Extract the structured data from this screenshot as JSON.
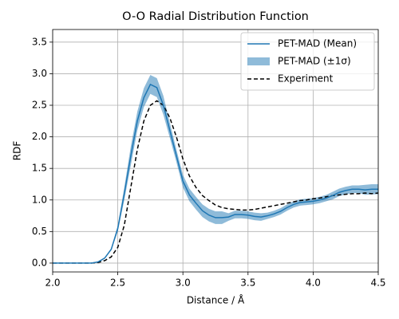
{
  "chart_data": {
    "type": "line",
    "title": "O-O Radial Distribution Function",
    "xlabel": "Distance / Å",
    "ylabel": "RDF",
    "x": [
      2.0,
      2.05,
      2.1,
      2.15,
      2.2,
      2.25,
      2.3,
      2.35,
      2.4,
      2.45,
      2.5,
      2.55,
      2.6,
      2.65,
      2.7,
      2.75,
      2.8,
      2.85,
      2.9,
      2.95,
      3.0,
      3.05,
      3.1,
      3.15,
      3.2,
      3.25,
      3.3,
      3.35,
      3.4,
      3.45,
      3.5,
      3.55,
      3.6,
      3.65,
      3.7,
      3.75,
      3.8,
      3.85,
      3.9,
      3.95,
      4.0,
      4.05,
      4.1,
      4.15,
      4.2,
      4.25,
      4.3,
      4.35,
      4.4,
      4.45,
      4.5
    ],
    "series": [
      {
        "name": "PET-MAD (Mean)",
        "color": "#1f77b4",
        "style": "solid",
        "values": [
          0,
          0,
          0,
          0,
          0,
          0,
          0,
          0.02,
          0.08,
          0.22,
          0.55,
          1.1,
          1.7,
          2.25,
          2.62,
          2.83,
          2.78,
          2.5,
          2.1,
          1.7,
          1.3,
          1.08,
          0.95,
          0.83,
          0.76,
          0.72,
          0.72,
          0.73,
          0.77,
          0.77,
          0.76,
          0.74,
          0.73,
          0.75,
          0.78,
          0.82,
          0.88,
          0.93,
          0.96,
          0.97,
          0.98,
          1.0,
          1.03,
          1.07,
          1.12,
          1.15,
          1.17,
          1.17,
          1.16,
          1.17,
          1.17
        ]
      },
      {
        "name": "PET-MAD (±1σ)",
        "color": "#1f77b4",
        "alpha": 0.5,
        "style": "band",
        "lower": [
          0,
          0,
          0,
          0,
          0,
          0,
          0,
          0.01,
          0.07,
          0.21,
          0.5,
          1.0,
          1.55,
          2.1,
          2.47,
          2.68,
          2.63,
          2.35,
          1.98,
          1.6,
          1.2,
          0.98,
          0.85,
          0.73,
          0.66,
          0.62,
          0.62,
          0.67,
          0.71,
          0.71,
          0.7,
          0.68,
          0.67,
          0.7,
          0.73,
          0.77,
          0.83,
          0.88,
          0.91,
          0.92,
          0.93,
          0.95,
          0.98,
          1.01,
          1.06,
          1.09,
          1.11,
          1.11,
          1.08,
          1.09,
          1.09
        ],
        "upper": [
          0,
          0,
          0,
          0,
          0,
          0,
          0,
          0.03,
          0.09,
          0.23,
          0.6,
          1.2,
          1.85,
          2.4,
          2.77,
          2.98,
          2.93,
          2.65,
          2.22,
          1.8,
          1.4,
          1.18,
          1.05,
          0.93,
          0.86,
          0.82,
          0.82,
          0.79,
          0.83,
          0.83,
          0.82,
          0.8,
          0.79,
          0.8,
          0.83,
          0.87,
          0.93,
          0.98,
          1.01,
          1.02,
          1.03,
          1.05,
          1.08,
          1.13,
          1.18,
          1.21,
          1.23,
          1.23,
          1.24,
          1.25,
          1.25
        ]
      },
      {
        "name": "Experiment",
        "color": "#000000",
        "style": "dashed",
        "values": [
          0,
          0,
          0,
          0,
          0,
          0,
          0,
          0.01,
          0.04,
          0.1,
          0.25,
          0.6,
          1.2,
          1.8,
          2.25,
          2.5,
          2.57,
          2.5,
          2.3,
          2.0,
          1.65,
          1.38,
          1.2,
          1.07,
          0.99,
          0.92,
          0.88,
          0.86,
          0.85,
          0.84,
          0.84,
          0.85,
          0.87,
          0.89,
          0.91,
          0.93,
          0.95,
          0.97,
          0.99,
          1.0,
          1.02,
          1.03,
          1.05,
          1.07,
          1.08,
          1.09,
          1.1,
          1.1,
          1.11,
          1.1,
          1.11
        ]
      }
    ],
    "xlim": [
      2.0,
      4.5
    ],
    "ylim": [
      -0.14,
      3.7
    ],
    "xticks": [
      {
        "value": 2,
        "label": "2.0"
      },
      2.5,
      {
        "value": 3,
        "label": "3.0"
      },
      3.5,
      {
        "value": 4,
        "label": "4.0"
      },
      4.5
    ],
    "yticks": [
      {
        "value": 0,
        "label": "0.0"
      },
      0.5,
      {
        "value": 1,
        "label": "1.0"
      },
      1.5,
      {
        "value": 2,
        "label": "2.0"
      },
      2.5,
      {
        "value": 3,
        "label": "3.0"
      },
      3.5
    ],
    "grid": true,
    "legend": "upper right"
  }
}
